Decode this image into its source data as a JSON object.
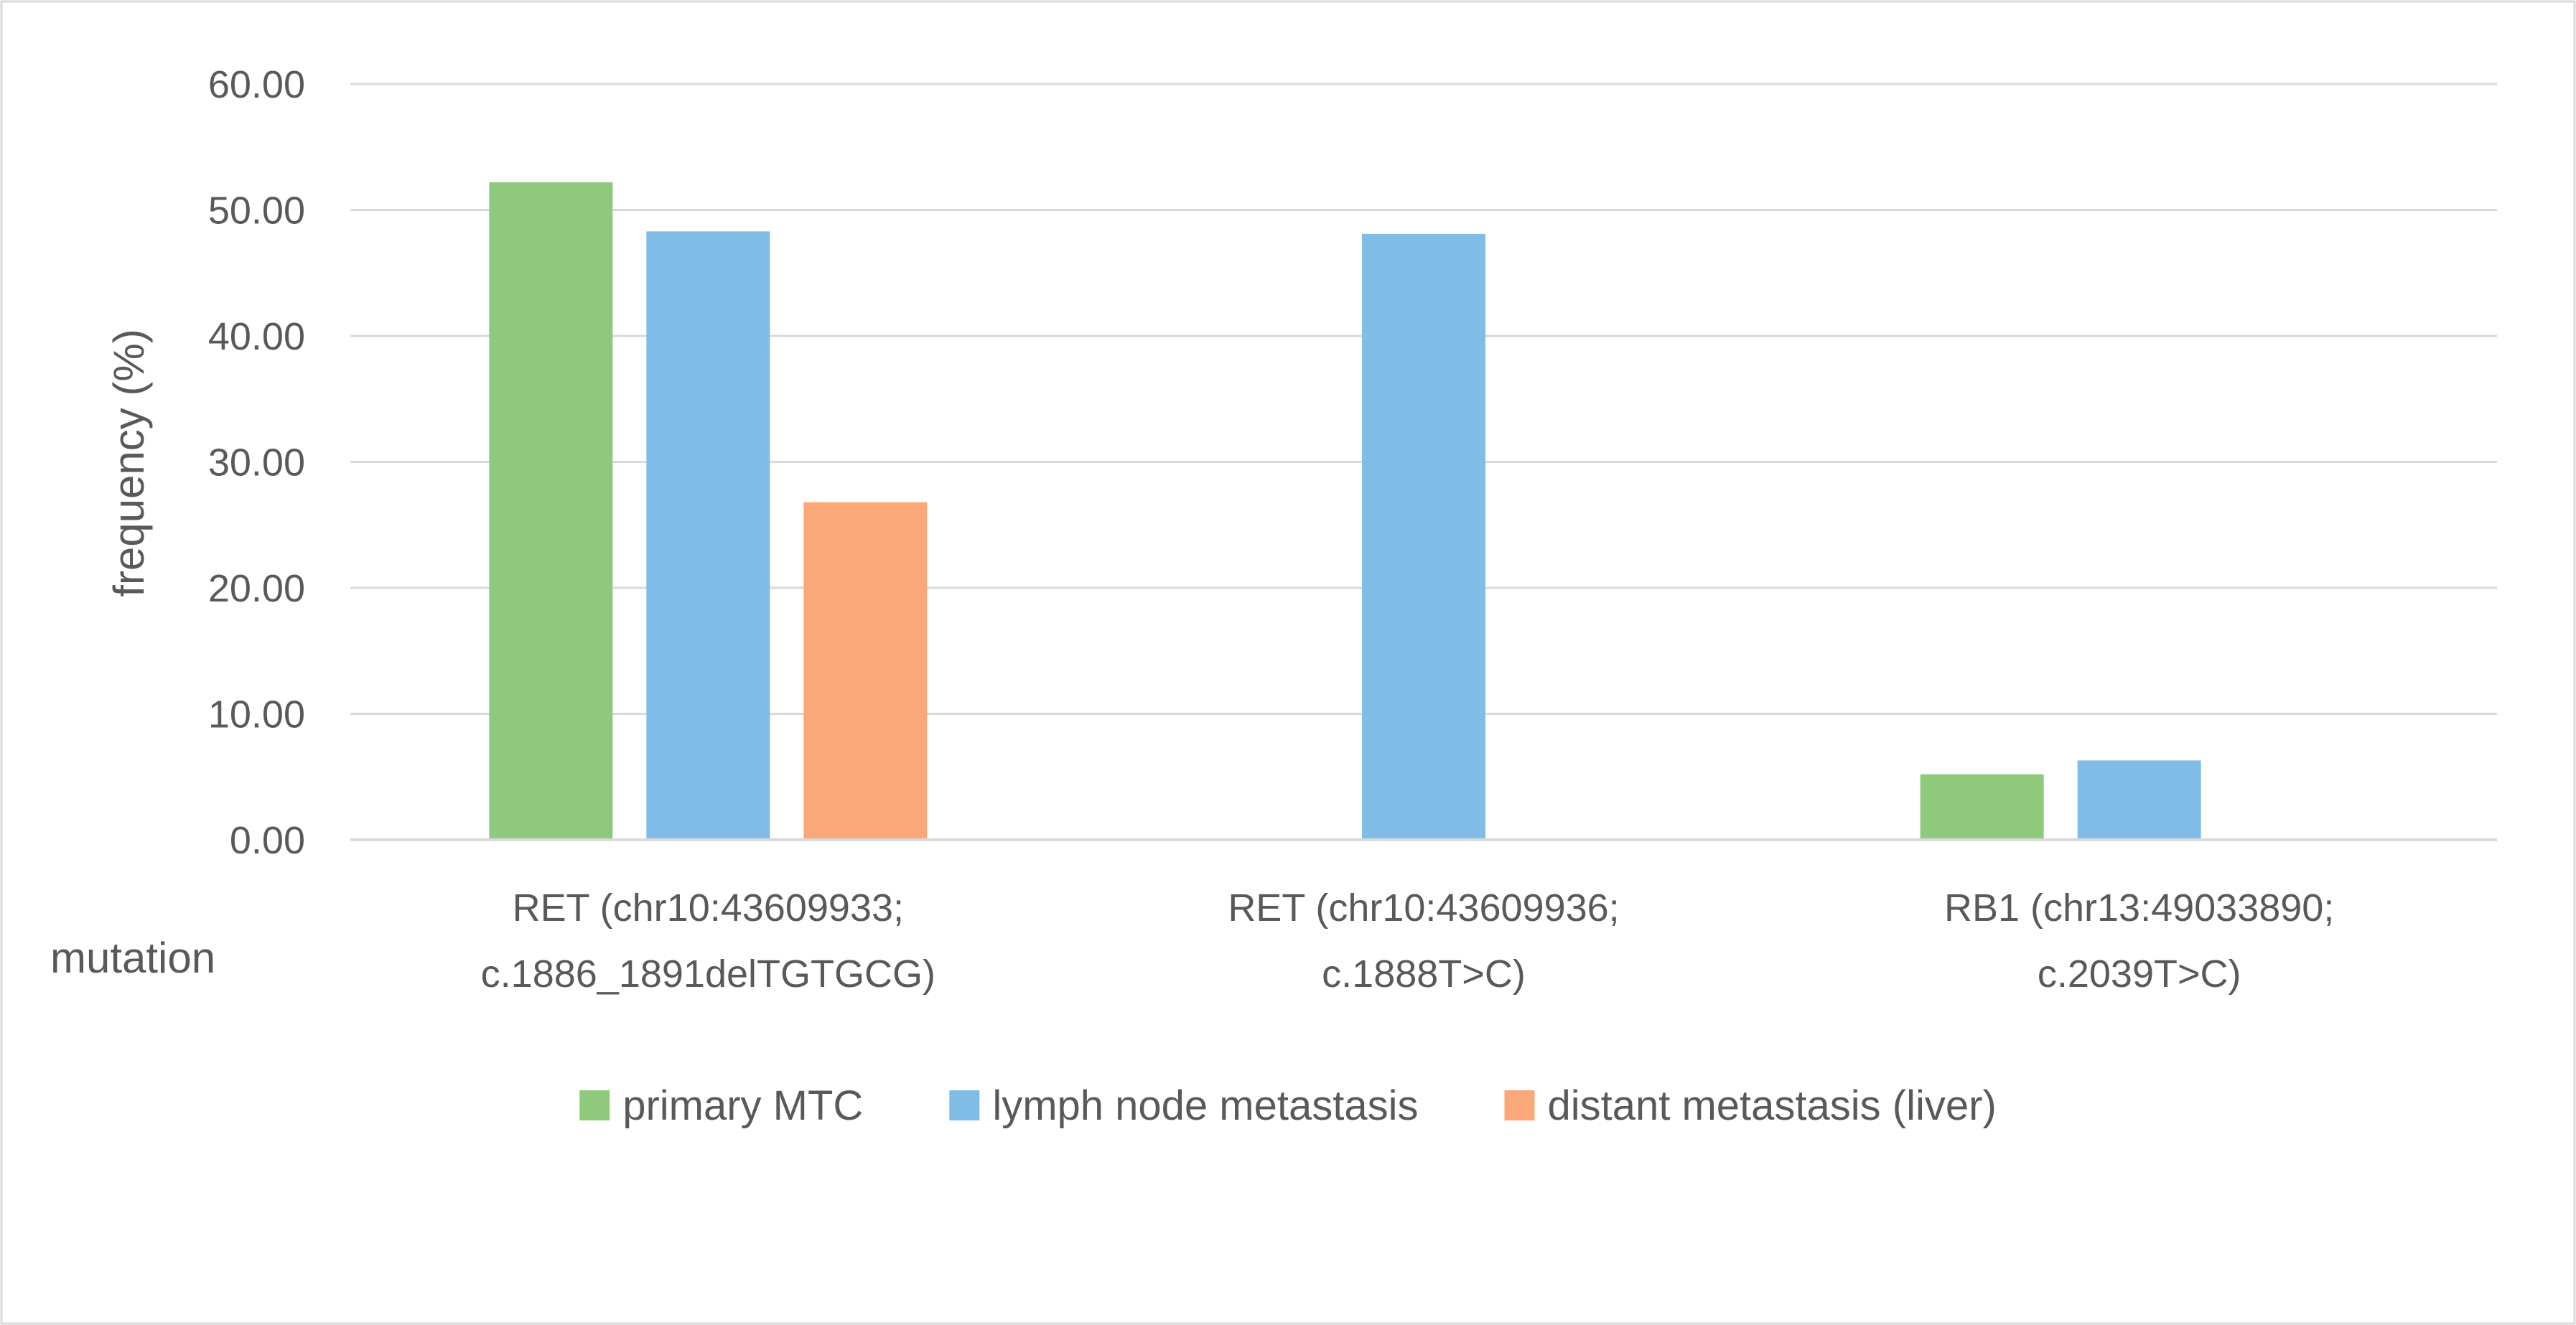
{
  "chart_data": {
    "type": "bar",
    "title": "",
    "ylabel": "frequency (%)",
    "xlabel": "mutation",
    "ylim": [
      0,
      60
    ],
    "yticks": [
      "0.00",
      "10.00",
      "20.00",
      "30.00",
      "40.00",
      "50.00",
      "60.00"
    ],
    "grid": true,
    "legend_position": "bottom",
    "categories": [
      {
        "line1": "RET (chr10:43609933;",
        "line2": "c.1886_1891delTGTGCG)"
      },
      {
        "line1": "RET (chr10:43609936;",
        "line2": "c.1888T>C)"
      },
      {
        "line1": "RB1 (chr13:49033890;",
        "line2": "c.2039T>C)"
      }
    ],
    "series": [
      {
        "name": "primary MTC",
        "color": "#8fca7c",
        "values": [
          52.2,
          null,
          5.2
        ]
      },
      {
        "name": "lymph node metastasis",
        "color": "#7fbde6",
        "values": [
          48.3,
          48.1,
          6.3
        ]
      },
      {
        "name": "distant metastasis (liver)",
        "color": "#fba878",
        "values": [
          26.8,
          null,
          null
        ]
      }
    ]
  }
}
